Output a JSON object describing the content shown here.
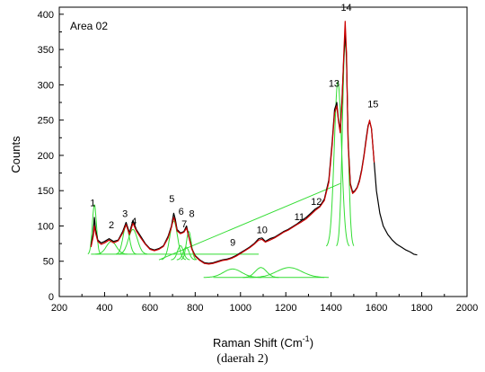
{
  "chart_data": {
    "type": "line",
    "annotation": "Area 02",
    "xlabel": "Raman Shift (Cm",
    "xlabel_superscript": "-1",
    "xlabel_suffix": ")",
    "ylabel": "Counts",
    "xlim": [
      200,
      2000
    ],
    "ylim": [
      0,
      410
    ],
    "x_ticks": [
      200,
      400,
      600,
      800,
      1000,
      1200,
      1400,
      1600,
      1800,
      2000
    ],
    "y_ticks": [
      0,
      50,
      100,
      150,
      200,
      250,
      300,
      350,
      400
    ],
    "grid": false,
    "colors": {
      "spectrum": "#000000",
      "fit": "#cc0000",
      "components": "#33dd33"
    },
    "series": [
      {
        "role": "spectrum",
        "x": [
          340,
          350,
          355,
          360,
          370,
          385,
          400,
          420,
          440,
          460,
          480,
          495,
          510,
          525,
          540,
          560,
          580,
          600,
          620,
          640,
          660,
          680,
          695,
          705,
          712,
          720,
          735,
          750,
          762,
          772,
          785,
          800,
          820,
          840,
          860,
          880,
          900,
          920,
          940,
          960,
          980,
          1000,
          1020,
          1040,
          1060,
          1080,
          1095,
          1110,
          1130,
          1150,
          1170,
          1190,
          1210,
          1230,
          1250,
          1270,
          1290,
          1310,
          1330,
          1350,
          1370,
          1390,
          1405,
          1415,
          1425,
          1432,
          1440,
          1448,
          1455,
          1462,
          1468,
          1475,
          1485,
          1495,
          1505,
          1515,
          1525,
          1535,
          1545,
          1555,
          1563,
          1570,
          1578,
          1590,
          1600,
          1615,
          1630,
          1650,
          1670,
          1690,
          1710,
          1730,
          1750,
          1765,
          1780
        ],
        "y": [
          72,
          90,
          112,
          95,
          80,
          76,
          78,
          82,
          78,
          80,
          92,
          105,
          90,
          108,
          95,
          85,
          75,
          68,
          66,
          68,
          72,
          85,
          100,
          118,
          110,
          95,
          90,
          92,
          100,
          85,
          68,
          58,
          52,
          48,
          47,
          48,
          50,
          52,
          53,
          55,
          58,
          62,
          66,
          70,
          75,
          82,
          83,
          78,
          82,
          84,
          88,
          92,
          95,
          99,
          103,
          108,
          112,
          118,
          124,
          128,
          138,
          165,
          220,
          265,
          275,
          252,
          235,
          280,
          330,
          375,
          340,
          220,
          160,
          148,
          150,
          155,
          165,
          180,
          200,
          225,
          242,
          248,
          238,
          190,
          150,
          118,
          100,
          88,
          80,
          74,
          70,
          66,
          63,
          60,
          59
        ]
      },
      {
        "role": "fit",
        "x": [
          340,
          350,
          355,
          360,
          370,
          385,
          400,
          420,
          440,
          460,
          480,
          495,
          510,
          525,
          540,
          560,
          580,
          600,
          620,
          640,
          660,
          680,
          695,
          705,
          712,
          720,
          735,
          750,
          762,
          772,
          785,
          800,
          820,
          840,
          860,
          880,
          900,
          920,
          940,
          960,
          980,
          1000,
          1020,
          1040,
          1060,
          1080,
          1095,
          1110,
          1130,
          1150,
          1170,
          1190,
          1210,
          1230,
          1250,
          1270,
          1290,
          1310,
          1330,
          1350,
          1370,
          1390,
          1405,
          1415,
          1425,
          1432,
          1440,
          1448,
          1455,
          1462,
          1468,
          1475,
          1485,
          1495,
          1505,
          1515,
          1525,
          1535,
          1545,
          1555,
          1563,
          1570,
          1578,
          1590
        ],
        "y": [
          70,
          85,
          100,
          90,
          78,
          74,
          76,
          80,
          76,
          79,
          90,
          102,
          88,
          104,
          93,
          83,
          74,
          67,
          65,
          67,
          71,
          83,
          98,
          112,
          106,
          93,
          89,
          91,
          97,
          84,
          67,
          57,
          51,
          47,
          46,
          47,
          49,
          51,
          52,
          54,
          57,
          61,
          65,
          69,
          74,
          80,
          81,
          77,
          80,
          83,
          87,
          91,
          94,
          98,
          102,
          106,
          110,
          116,
          122,
          127,
          136,
          162,
          215,
          260,
          270,
          250,
          232,
          275,
          335,
          390,
          345,
          215,
          158,
          146,
          149,
          154,
          163,
          178,
          198,
          222,
          240,
          250,
          238,
          190
        ]
      }
    ],
    "components": [
      {
        "center": 355,
        "height": 70,
        "width": 9,
        "base": 60
      },
      {
        "center": 430,
        "height": 18,
        "width": 22,
        "base": 60
      },
      {
        "center": 495,
        "height": 40,
        "width": 14,
        "base": 60
      },
      {
        "center": 525,
        "height": 35,
        "width": 20,
        "base": 60
      },
      {
        "center": 705,
        "height": 55,
        "width": 17,
        "base": 52
      },
      {
        "center": 735,
        "height": 20,
        "width": 13,
        "base": 52
      },
      {
        "center": 760,
        "height": 18,
        "width": 13,
        "base": 52
      },
      {
        "center": 772,
        "height": 40,
        "width": 11,
        "base": 52
      },
      {
        "center": 965,
        "height": 12,
        "width": 40,
        "base": 27
      },
      {
        "center": 1090,
        "height": 14,
        "width": 25,
        "base": 27
      },
      {
        "center": 1215,
        "height": 14,
        "width": 55,
        "base": 27
      },
      {
        "center": 1430,
        "height": 235,
        "width": 16,
        "base": 70
      },
      {
        "center": 1462,
        "height": 290,
        "width": 12,
        "base": 70
      }
    ],
    "baselines": [
      {
        "x": [
          340,
          1080
        ],
        "y": [
          60,
          60
        ]
      },
      {
        "x": [
          640,
          1440
        ],
        "y": [
          52,
          160
        ]
      },
      {
        "x": [
          880,
          1370
        ],
        "y": [
          27,
          27
        ]
      }
    ],
    "peak_labels": [
      {
        "text": "1",
        "x": 348,
        "y": 128
      },
      {
        "text": "2",
        "x": 430,
        "y": 97
      },
      {
        "text": "3",
        "x": 490,
        "y": 113
      },
      {
        "text": "4",
        "x": 530,
        "y": 102
      },
      {
        "text": "5",
        "x": 697,
        "y": 134
      },
      {
        "text": "6",
        "x": 738,
        "y": 116
      },
      {
        "text": "7",
        "x": 752,
        "y": 98
      },
      {
        "text": "8",
        "x": 785,
        "y": 113
      },
      {
        "text": "9",
        "x": 966,
        "y": 72
      },
      {
        "text": "10",
        "x": 1095,
        "y": 90
      },
      {
        "text": "11",
        "x": 1260,
        "y": 108
      },
      {
        "text": "12",
        "x": 1335,
        "y": 130
      },
      {
        "text": "13",
        "x": 1413,
        "y": 297
      },
      {
        "text": "14",
        "x": 1467,
        "y": 405
      },
      {
        "text": "15",
        "x": 1585,
        "y": 268
      }
    ]
  },
  "caption": "(daerah  2)"
}
